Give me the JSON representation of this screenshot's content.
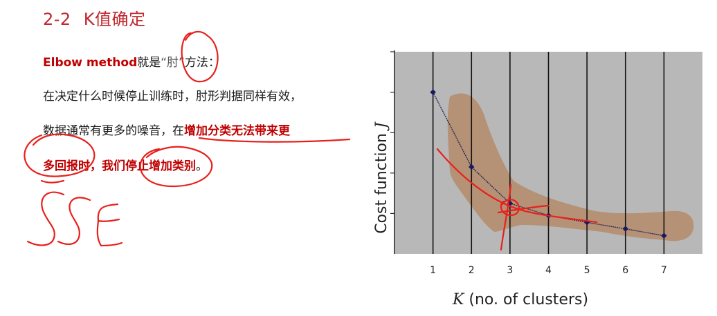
{
  "slide": {
    "title_num": "2-2",
    "title_text": "K值确定",
    "line1_bold": "Elbow method",
    "line1_a": "就是",
    "line1_quote": "“肘”",
    "line1_b": "方法：",
    "line2": "在决定什么时候停止训练时，肘形判据同样有效，",
    "line3_a": "数据通常有更多的噪音，在",
    "line3_bold": "增加分类无法带来更",
    "line4_bold": "多回报时，我们停止增加类别",
    "line4_end": "。"
  },
  "annotations": {
    "ink_color": "#e8201c",
    "handwritten": "SSE"
  },
  "chart_data": {
    "type": "line",
    "x": [
      1,
      2,
      3,
      4,
      5,
      6,
      7
    ],
    "y": [
      4.0,
      2.15,
      1.25,
      0.95,
      0.78,
      0.62,
      0.45
    ],
    "xticks": [
      "1",
      "2",
      "3",
      "4",
      "5",
      "6",
      "7"
    ],
    "xlabel_var": "K",
    "xlabel_rest": " (no. of clusters)",
    "ylabel_text": "Cost function ",
    "ylabel_var": "J",
    "xlim": [
      0,
      8
    ],
    "ylim": [
      0,
      5
    ],
    "grid": "vertical",
    "background": "#b8b8b8",
    "line_color": "#2a2a55",
    "marker_color": "#1a1a60"
  }
}
